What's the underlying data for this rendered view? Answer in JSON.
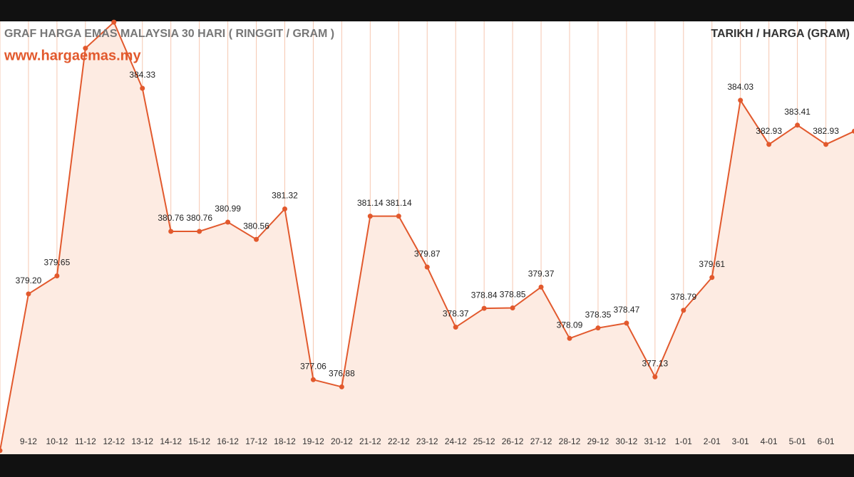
{
  "chart_data": {
    "type": "line",
    "title": "GRAF HARGA EMAS MALAYSIA 30 HARI ( RINGGIT / GRAM )",
    "subtitle": "www.hargaemas.my",
    "legend_title": "TARIKH / HARGA (GRAM)",
    "categories": [
      null,
      "9-12",
      "10-12",
      "11-12",
      "12-12",
      "13-12",
      "14-12",
      "15-12",
      "16-12",
      "17-12",
      "18-12",
      "19-12",
      "20-12",
      "21-12",
      "22-12",
      "23-12",
      "24-12",
      "25-12",
      "26-12",
      "27-12",
      "28-12",
      "29-12",
      "30-12",
      "31-12",
      "1-01",
      "2-01",
      "3-01",
      "4-01",
      "5-01",
      "6-01",
      null
    ],
    "values": [
      375.29,
      379.2,
      379.65,
      385.33,
      385.98,
      384.33,
      380.76,
      380.76,
      380.99,
      380.56,
      381.32,
      377.06,
      376.88,
      381.14,
      381.14,
      379.87,
      378.37,
      378.84,
      378.85,
      379.37,
      378.09,
      378.35,
      378.47,
      377.13,
      378.79,
      379.61,
      384.03,
      382.93,
      383.41,
      382.93,
      383.26
    ],
    "value_labels": [
      null,
      "379.20",
      "379.65",
      null,
      null,
      "384.33",
      "380.76",
      "380.76",
      "380.99",
      "380.56",
      "381.32",
      "377.06",
      "376.88",
      "381.14",
      "381.14",
      "379.87",
      "378.37",
      "378.84",
      "378.85",
      "379.37",
      "378.09",
      "378.35",
      "378.47",
      "377.13",
      "378.79",
      "379.61",
      "384.03",
      "382.93",
      "383.41",
      "382.93",
      null
    ],
    "color": "#e2592d",
    "area_color": "#fdebe2",
    "grid_color": "#f6c7b0",
    "ylim": [
      375.2,
      386
    ],
    "grid": true
  }
}
